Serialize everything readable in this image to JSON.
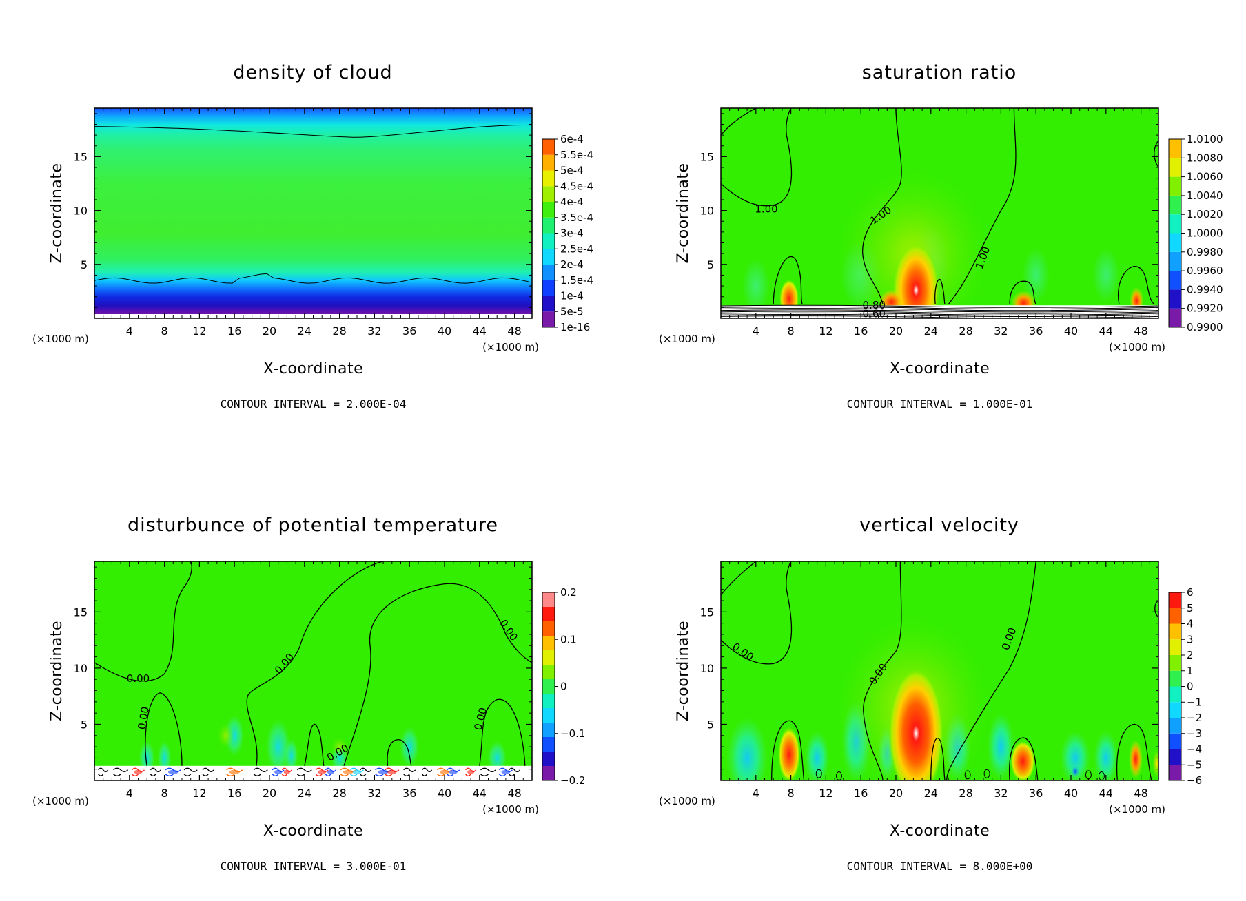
{
  "chart_data": [
    {
      "type": "heatmap",
      "title": "density of cloud",
      "xlabel": "X-coordinate",
      "ylabel": "Z-coordinate",
      "x_unit_left": "(×1000 m)",
      "x_unit_right": "(×1000 m)",
      "x_ticks": [
        "4",
        "8",
        "12",
        "16",
        "20",
        "24",
        "28",
        "32",
        "36",
        "40",
        "44",
        "48"
      ],
      "y_ticks": [
        "5",
        "10",
        "15"
      ],
      "xlim": [
        0,
        50
      ],
      "ylim": [
        0,
        19.5
      ],
      "colorbar_labels": [
        "6e-4",
        "5.5e-4",
        "5e-4",
        "4.5e-4",
        "4e-4",
        "3.5e-4",
        "3e-4",
        "2.5e-4",
        "2e-4",
        "1.5e-4",
        "1e-4",
        "5e-5",
        "1e-16"
      ],
      "contour_labels": [],
      "contour_interval": "CONTOUR INTERVAL = 2.000E-04"
    },
    {
      "type": "heatmap",
      "title": "saturation ratio",
      "xlabel": "X-coordinate",
      "ylabel": "Z-coordinate",
      "x_unit_left": "(×1000 m)",
      "x_unit_right": "(×1000 m)",
      "x_ticks": [
        "4",
        "8",
        "12",
        "16",
        "20",
        "24",
        "28",
        "32",
        "36",
        "40",
        "44",
        "48"
      ],
      "y_ticks": [
        "5",
        "10",
        "15"
      ],
      "xlim": [
        0,
        50
      ],
      "ylim": [
        0,
        19.5
      ],
      "colorbar_labels": [
        "1.0100",
        "1.0080",
        "1.0060",
        "1.0040",
        "1.0020",
        "1.0000",
        "0.9980",
        "0.9960",
        "0.9940",
        "0.9920",
        "0.9900"
      ],
      "contour_labels": [
        "1.00",
        "1.00",
        "1.00",
        "0.80",
        "0.60"
      ],
      "contour_interval": "CONTOUR INTERVAL = 1.000E-01"
    },
    {
      "type": "heatmap",
      "title": "disturbunce of potential temperature",
      "xlabel": "X-coordinate",
      "ylabel": "Z-coordinate",
      "x_unit_left": "(×1000 m)",
      "x_unit_right": "(×1000 m)",
      "x_ticks": [
        "4",
        "8",
        "12",
        "16",
        "20",
        "24",
        "28",
        "32",
        "36",
        "40",
        "44",
        "48"
      ],
      "y_ticks": [
        "5",
        "10",
        "15"
      ],
      "xlim": [
        0,
        50
      ],
      "ylim": [
        0,
        19.5
      ],
      "colorbar_labels": [
        "0.2",
        "0.1",
        "0",
        "−0.1",
        "−0.2"
      ],
      "contour_labels": [
        "0.00",
        "0.00",
        "0.00",
        "0.00",
        "0.00",
        "0.00"
      ],
      "contour_interval": "CONTOUR INTERVAL = 3.000E-01"
    },
    {
      "type": "heatmap",
      "title": "vertical velocity",
      "xlabel": "X-coordinate",
      "ylabel": "Z-coordinate",
      "x_unit_left": "(×1000 m)",
      "x_unit_right": "(×1000 m)",
      "x_ticks": [
        "4",
        "8",
        "12",
        "16",
        "20",
        "24",
        "28",
        "32",
        "36",
        "40",
        "44",
        "48"
      ],
      "y_ticks": [
        "5",
        "10",
        "15"
      ],
      "xlim": [
        0,
        50
      ],
      "ylim": [
        0,
        19.5
      ],
      "colorbar_labels": [
        "6",
        "5",
        "4",
        "3",
        "2",
        "1",
        "0",
        "−1",
        "−2",
        "−3",
        "−4",
        "−5",
        "−6"
      ],
      "contour_labels": [
        "0.00",
        "0.00",
        "0.00"
      ],
      "contour_interval": "CONTOUR INTERVAL = 8.000E+00"
    }
  ],
  "colors": {
    "green": "#33ee00",
    "cyan": "#00e8c8",
    "blue": "#1550ff",
    "purple": "#7a1aa8",
    "red": "#ff1a10",
    "yellow": "#ffee00",
    "pink": "#ff9999"
  },
  "cmap_spectral": [
    "#8a10a0",
    "#3010c8",
    "#1040ff",
    "#1090ff",
    "#10d0ff",
    "#10f0c0",
    "#20f070",
    "#38f010",
    "#90ef00",
    "#e8f000",
    "#ffc000",
    "#ff7000",
    "#ff2010",
    "#ff8888"
  ]
}
